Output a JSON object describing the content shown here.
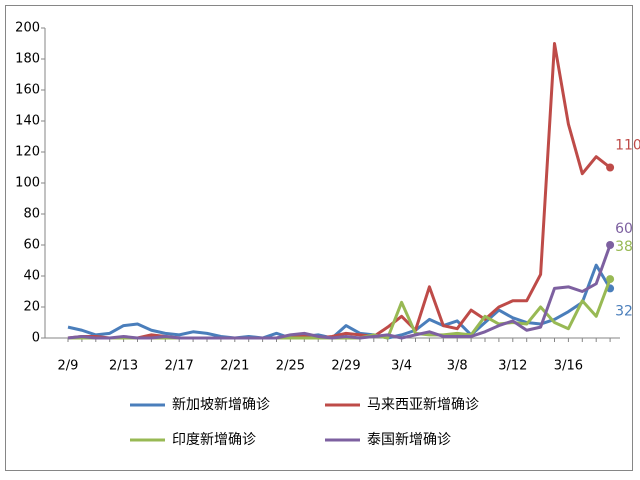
{
  "chart_data": {
    "type": "line",
    "categories": [
      "2/9",
      null,
      null,
      null,
      "2/13",
      null,
      null,
      null,
      "2/17",
      null,
      null,
      null,
      "2/21",
      null,
      null,
      null,
      "2/25",
      null,
      null,
      null,
      "2/29",
      null,
      null,
      null,
      "3/4",
      null,
      null,
      null,
      "3/8",
      null,
      null,
      null,
      "3/12",
      null,
      null,
      null,
      "3/16",
      null,
      null,
      null
    ],
    "series": [
      {
        "name": "新加坡新增确诊",
        "color": "#4a7ebb",
        "values": [
          7,
          5,
          2,
          3,
          8,
          9,
          5,
          3,
          2,
          4,
          3,
          1,
          0,
          1,
          0,
          3,
          0,
          1,
          2,
          0,
          8,
          3,
          2,
          0,
          2,
          5,
          12,
          8,
          11,
          2,
          10,
          18,
          13,
          10,
          9,
          12,
          17,
          23,
          47,
          32
        ]
      },
      {
        "name": "马来西亚新增确诊",
        "color": "#be4b48",
        "values": [
          0,
          1,
          1,
          0,
          0,
          0,
          2,
          1,
          0,
          0,
          0,
          0,
          0,
          0,
          0,
          0,
          1,
          1,
          0,
          1,
          3,
          2,
          1,
          7,
          14,
          5,
          33,
          8,
          6,
          18,
          12,
          20,
          24,
          24,
          41,
          190,
          138,
          106,
          117,
          110
        ]
      },
      {
        "name": "印度新增确诊",
        "color": "#98b954",
        "values": [
          0,
          0,
          0,
          0,
          0,
          0,
          0,
          0,
          0,
          0,
          0,
          0,
          0,
          0,
          0,
          0,
          0,
          0,
          0,
          0,
          0,
          0,
          2,
          0,
          23,
          3,
          2,
          2,
          3,
          2,
          14,
          9,
          10,
          9,
          20,
          10,
          6,
          24,
          14,
          38
        ]
      },
      {
        "name": "泰国新增确诊",
        "color": "#7d60a0",
        "values": [
          0,
          1,
          0,
          0,
          1,
          0,
          0,
          1,
          0,
          0,
          0,
          0,
          0,
          0,
          0,
          0,
          2,
          3,
          1,
          0,
          1,
          0,
          1,
          2,
          0,
          2,
          4,
          1,
          1,
          1,
          4,
          8,
          11,
          5,
          7,
          32,
          33,
          30,
          35,
          60
        ]
      }
    ],
    "ylim": [
      0,
      200
    ],
    "yticks": [
      0,
      20,
      40,
      60,
      80,
      100,
      120,
      140,
      160,
      180,
      200
    ],
    "grid": false
  }
}
